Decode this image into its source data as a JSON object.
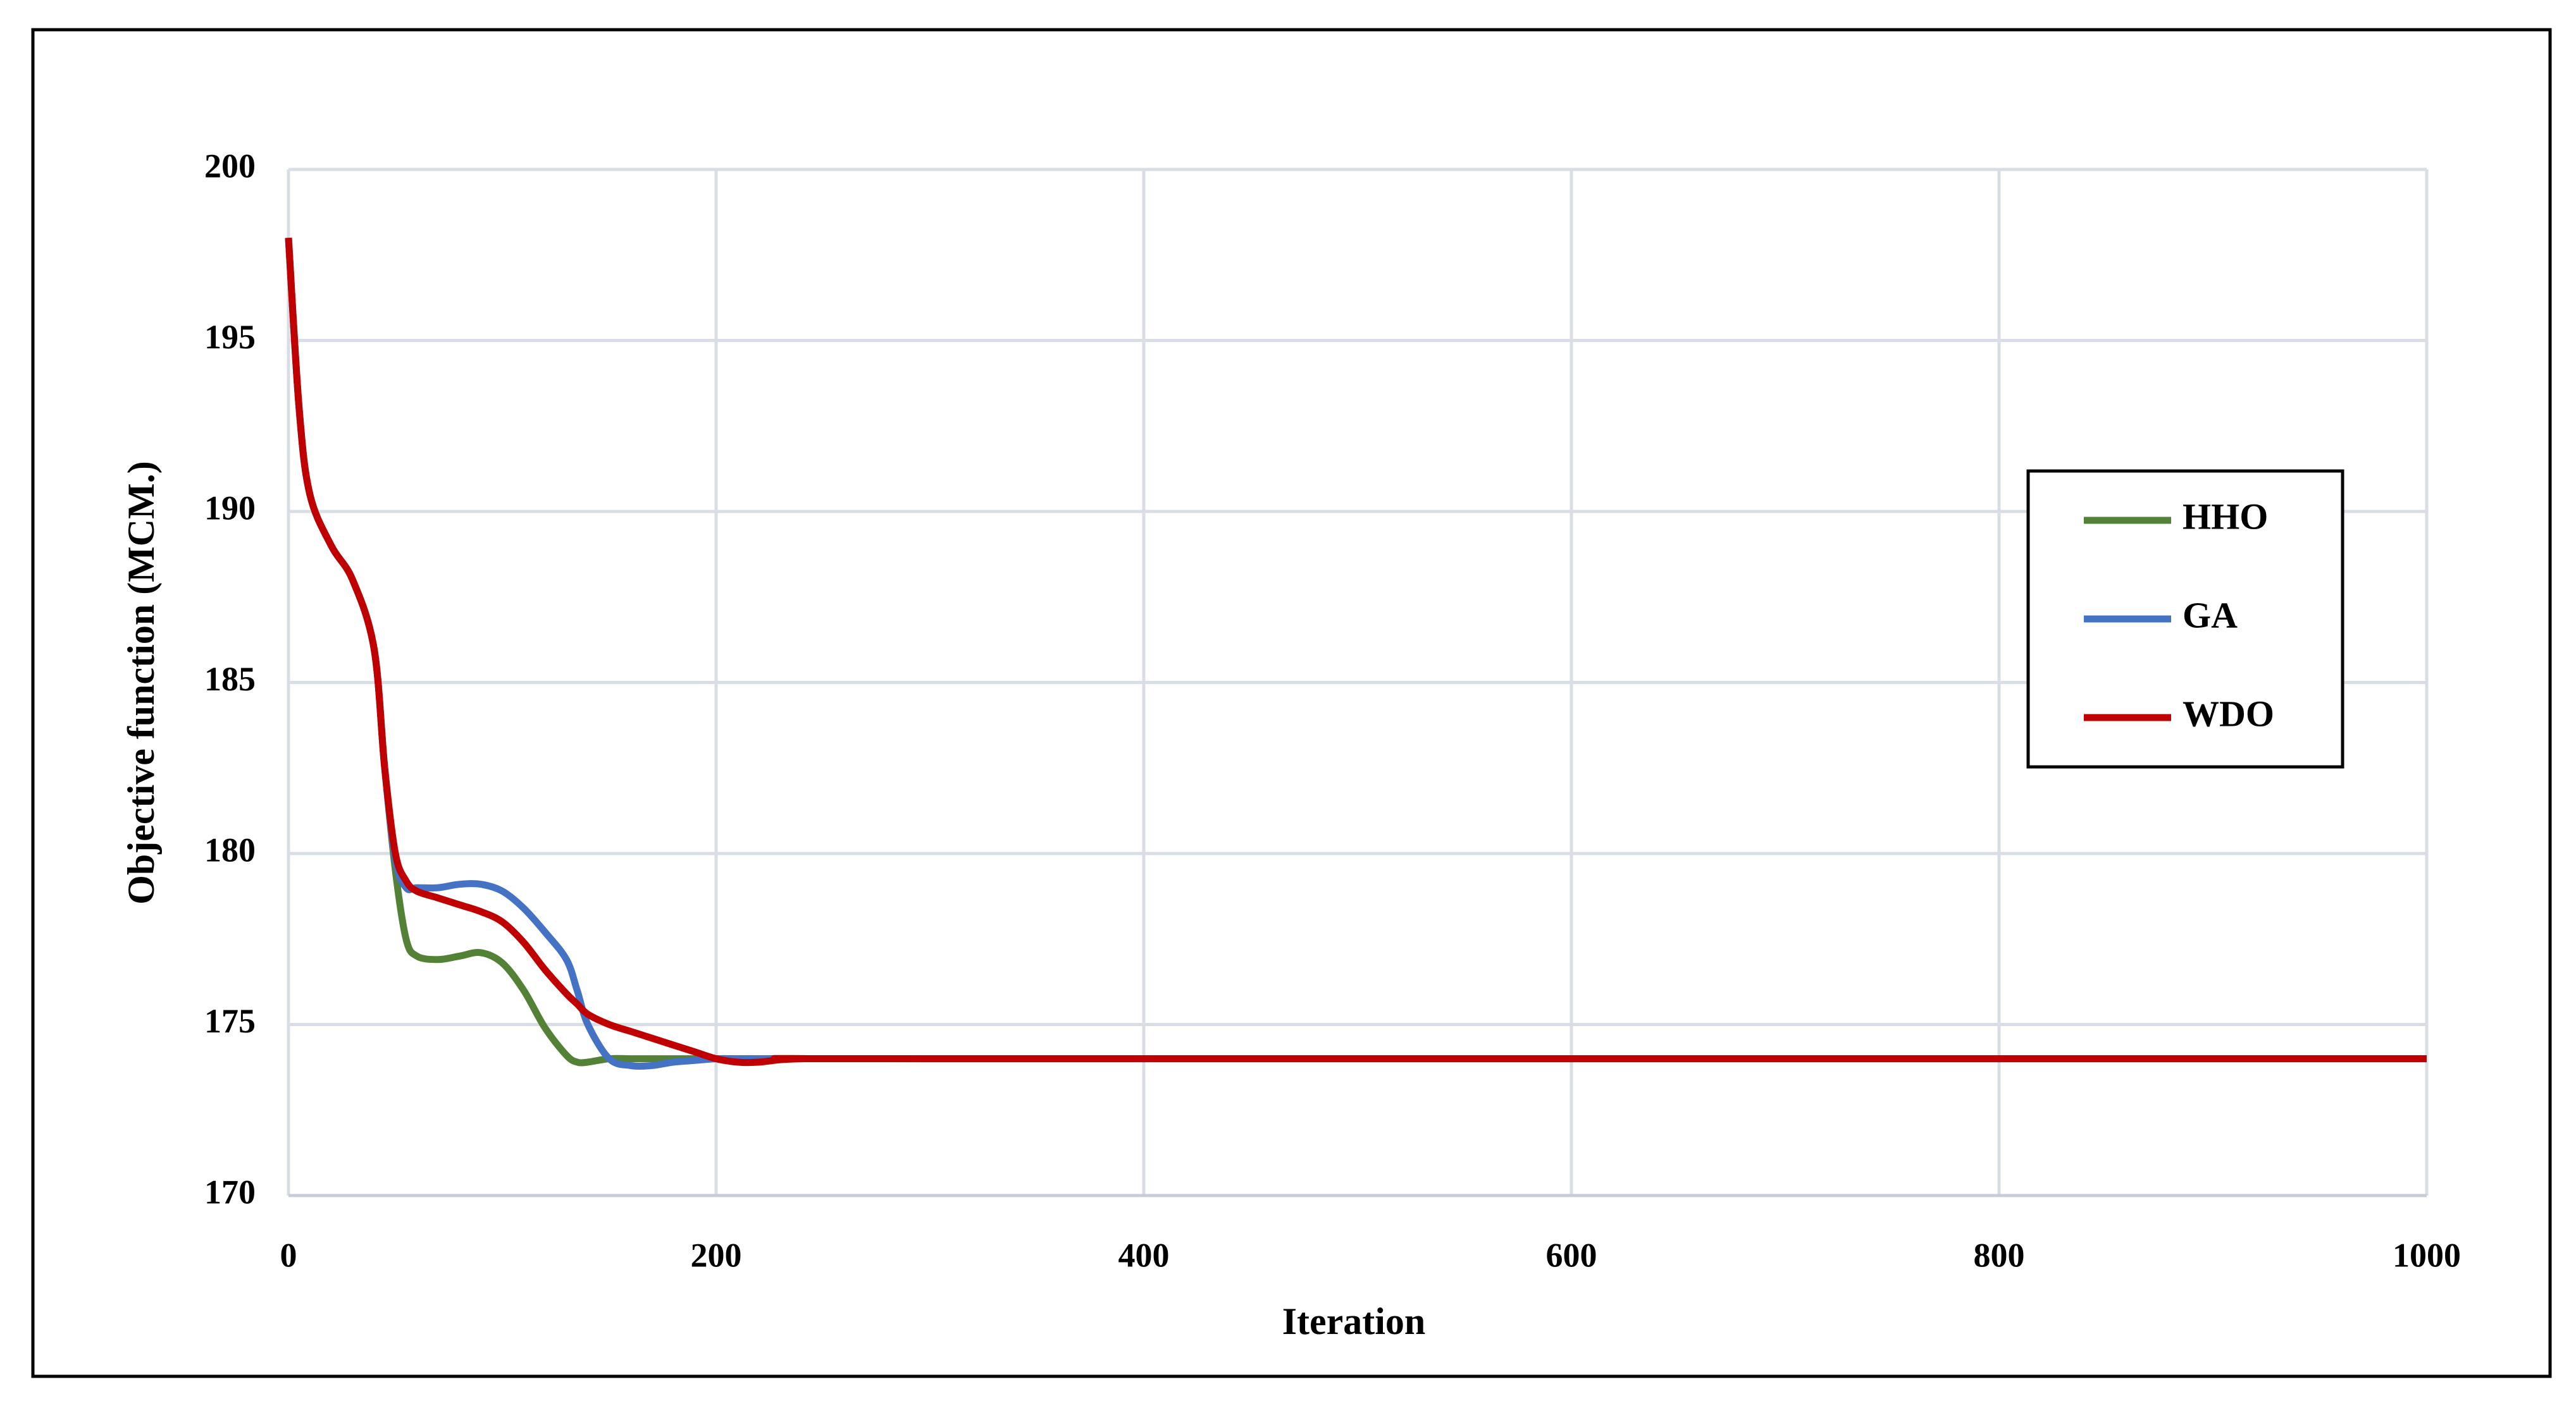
{
  "chart_data": {
    "type": "line",
    "x_label": "Iteration",
    "y_label": "Objective function (MCM.)",
    "x": [
      0,
      5,
      10,
      20,
      30,
      40,
      45,
      50,
      55,
      60,
      70,
      80,
      90,
      100,
      110,
      120,
      130,
      135,
      140,
      150,
      160,
      170,
      180,
      190,
      200,
      210,
      220,
      240,
      300,
      1000
    ],
    "series": [
      {
        "name": "HHO",
        "color": "#538135",
        "values": [
          198,
          193,
          190.5,
          189,
          188,
          186,
          182.5,
          179.5,
          177.5,
          177,
          176.9,
          177,
          177.1,
          176.8,
          176,
          174.9,
          174.1,
          173.9,
          173.9,
          174,
          174,
          174,
          174,
          174,
          174,
          174,
          174,
          174,
          174,
          174
        ]
      },
      {
        "name": "GA",
        "color": "#4472c4",
        "values": [
          198,
          193,
          190.5,
          189,
          188,
          186,
          182.5,
          179.8,
          179,
          179,
          179,
          179.1,
          179.1,
          178.9,
          178.4,
          177.7,
          176.9,
          176,
          175,
          174,
          173.8,
          173.8,
          173.9,
          173.95,
          174,
          174,
          174,
          174,
          174,
          174
        ]
      },
      {
        "name": "WDO",
        "color": "#c00000",
        "values": [
          198,
          193,
          190.5,
          189,
          188,
          186,
          182.5,
          180,
          179.2,
          178.9,
          178.7,
          178.5,
          178.3,
          178,
          177.4,
          176.6,
          175.9,
          175.6,
          175.3,
          175,
          174.8,
          174.6,
          174.4,
          174.2,
          174,
          173.9,
          173.9,
          174,
          174,
          174
        ]
      }
    ],
    "xlim": [
      0,
      1000
    ],
    "xticks": [
      0,
      200,
      400,
      600,
      800,
      1000
    ],
    "ylim": [
      170,
      200
    ],
    "yticks": [
      170,
      175,
      180,
      185,
      190,
      195,
      200
    ],
    "grid": true,
    "legend_position": "right"
  }
}
